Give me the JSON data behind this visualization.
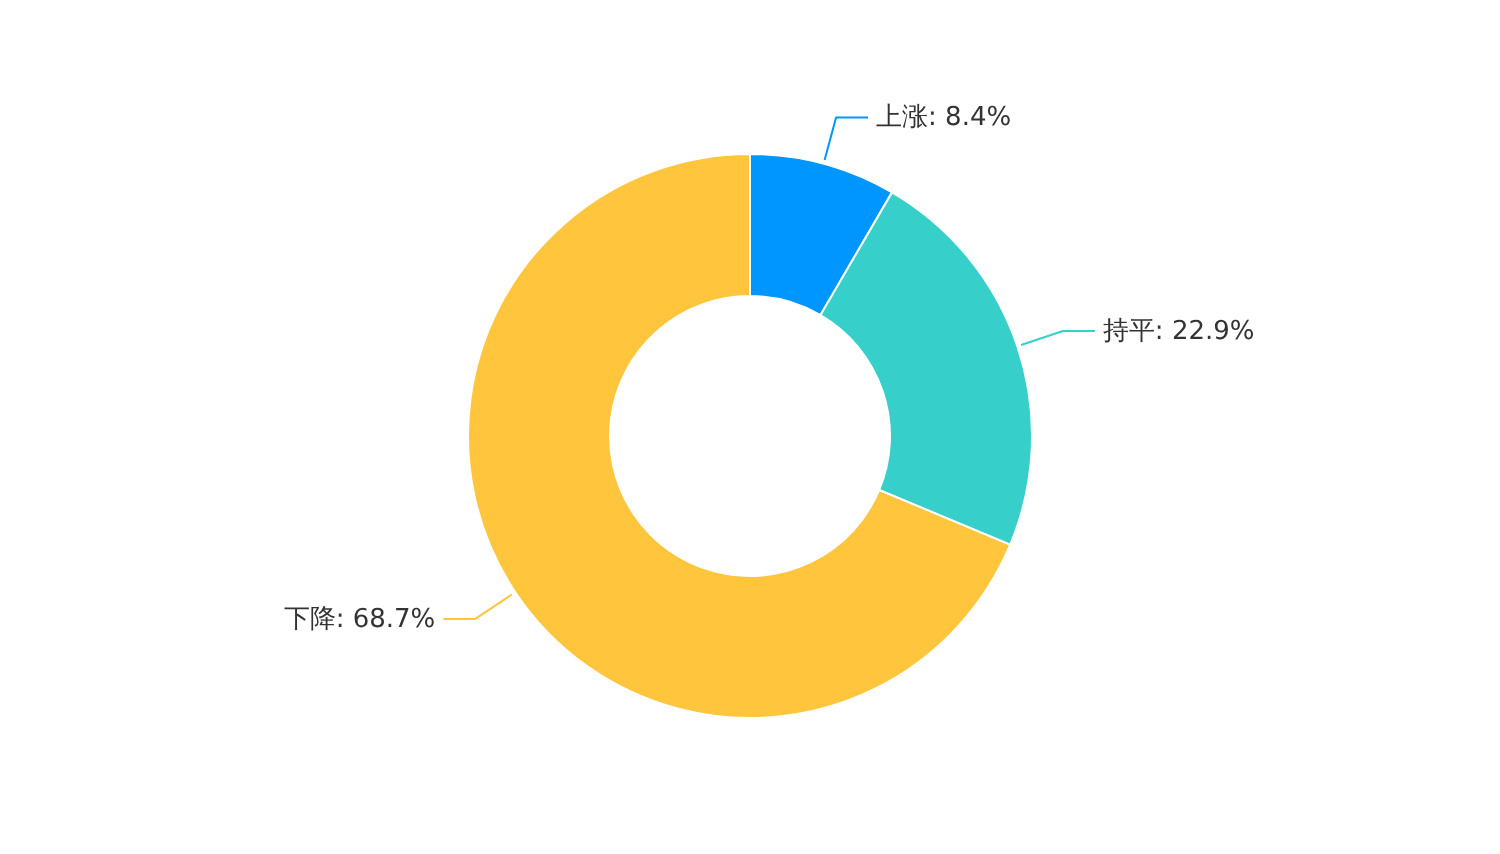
{
  "chart_data": {
    "type": "donut",
    "categories": [
      "上涨",
      "持平",
      "下降"
    ],
    "values": [
      8.4,
      22.9,
      68.7
    ],
    "colors": [
      "#0096ff",
      "#36cfc9",
      "#ffc53d"
    ],
    "value_labels": [
      "8.4%",
      "22.9%",
      "68.7%"
    ]
  }
}
